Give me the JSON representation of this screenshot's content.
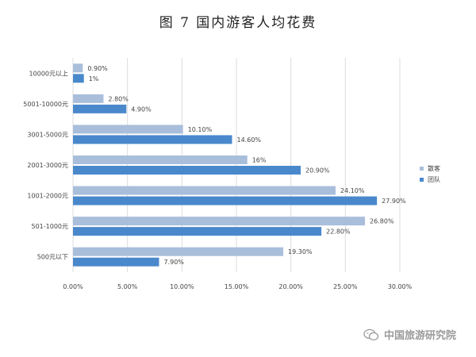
{
  "title": "图 7  国内游客人均花费",
  "watermark": "中国旅游研究院",
  "colors": {
    "individual": "#a9bedb",
    "group": "#4a88cc",
    "grid": "#dcdcdc",
    "text": "#444444"
  },
  "legend": {
    "individual": "散客",
    "group": "团队"
  },
  "chart_data": {
    "type": "bar",
    "orientation": "horizontal",
    "title": "图 7  国内游客人均花费",
    "categories": [
      "10000元以上",
      "5001-10000元",
      "3001-5000元",
      "2001-3000元",
      "1001-2000元",
      "501-1000元",
      "500元以下"
    ],
    "series": [
      {
        "name": "散客",
        "values": [
          0.9,
          2.8,
          10.1,
          16,
          24.1,
          26.8,
          19.3
        ],
        "labels": [
          "0.90%",
          "2.80%",
          "10.10%",
          "16%",
          "24.10%",
          "26.80%",
          "19.30%"
        ]
      },
      {
        "name": "团队",
        "values": [
          1,
          4.9,
          14.6,
          20.9,
          27.9,
          22.8,
          7.9
        ],
        "labels": [
          "1%",
          "4.90%",
          "14.60%",
          "20.90%",
          "27.90%",
          "22.80%",
          "7.90%"
        ]
      }
    ],
    "xlim": [
      0,
      30
    ],
    "xticks": [
      "0.00%",
      "5.00%",
      "10.00%",
      "15.00%",
      "20.00%",
      "25.00%",
      "30.00%"
    ],
    "grid": true,
    "legend_position": "right"
  }
}
